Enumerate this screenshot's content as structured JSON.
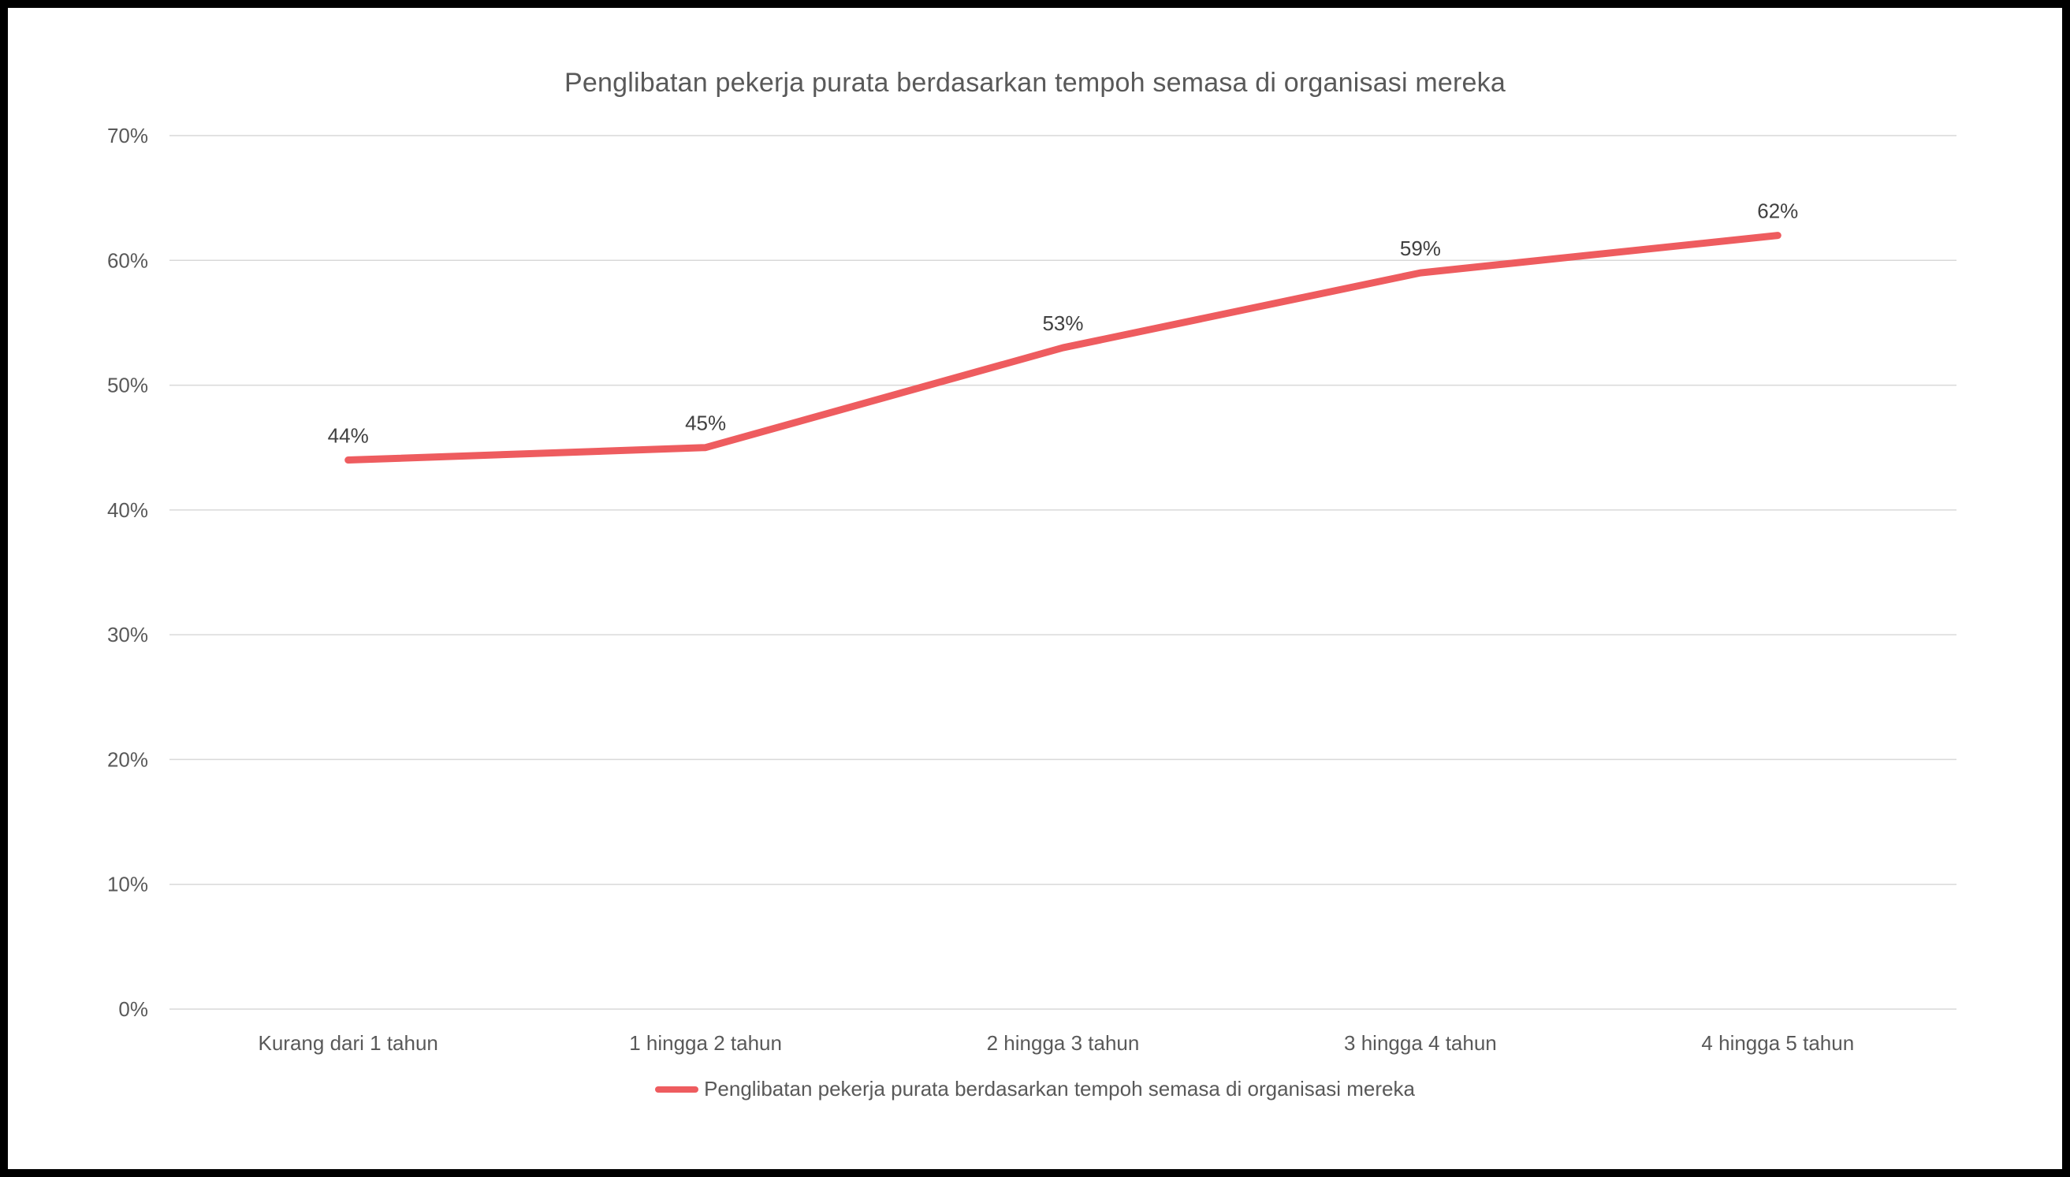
{
  "frame": {
    "background_color": "#ffffff",
    "border_color": "#000000"
  },
  "chart_data": {
    "type": "line",
    "title": "Penglibatan pekerja purata berdasarkan tempoh semasa di organisasi mereka",
    "categories": [
      "Kurang dari 1 tahun",
      "1 hingga 2 tahun",
      "2 hingga 3 tahun",
      "3 hingga 4 tahun",
      "4 hingga 5 tahun"
    ],
    "series": [
      {
        "name": "Penglibatan pekerja purata berdasarkan tempoh semasa di organisasi mereka",
        "values": [
          44,
          45,
          53,
          59,
          62
        ],
        "data_labels": [
          "44%",
          "45%",
          "53%",
          "59%",
          "62%"
        ],
        "color": "#ee5c5f"
      }
    ],
    "xlabel": "",
    "ylabel": "",
    "ylim": [
      0,
      70
    ],
    "y_tick_step": 10,
    "y_tick_labels": [
      "0%",
      "10%",
      "20%",
      "30%",
      "40%",
      "50%",
      "60%",
      "70%"
    ],
    "grid": true,
    "gridline_color": "#d9d9d9",
    "axis_text_color": "#595959",
    "data_label_color": "#404040",
    "legend_position": "bottom"
  },
  "legend": {
    "label": "Penglibatan pekerja purata berdasarkan tempoh semasa di organisasi mereka"
  }
}
